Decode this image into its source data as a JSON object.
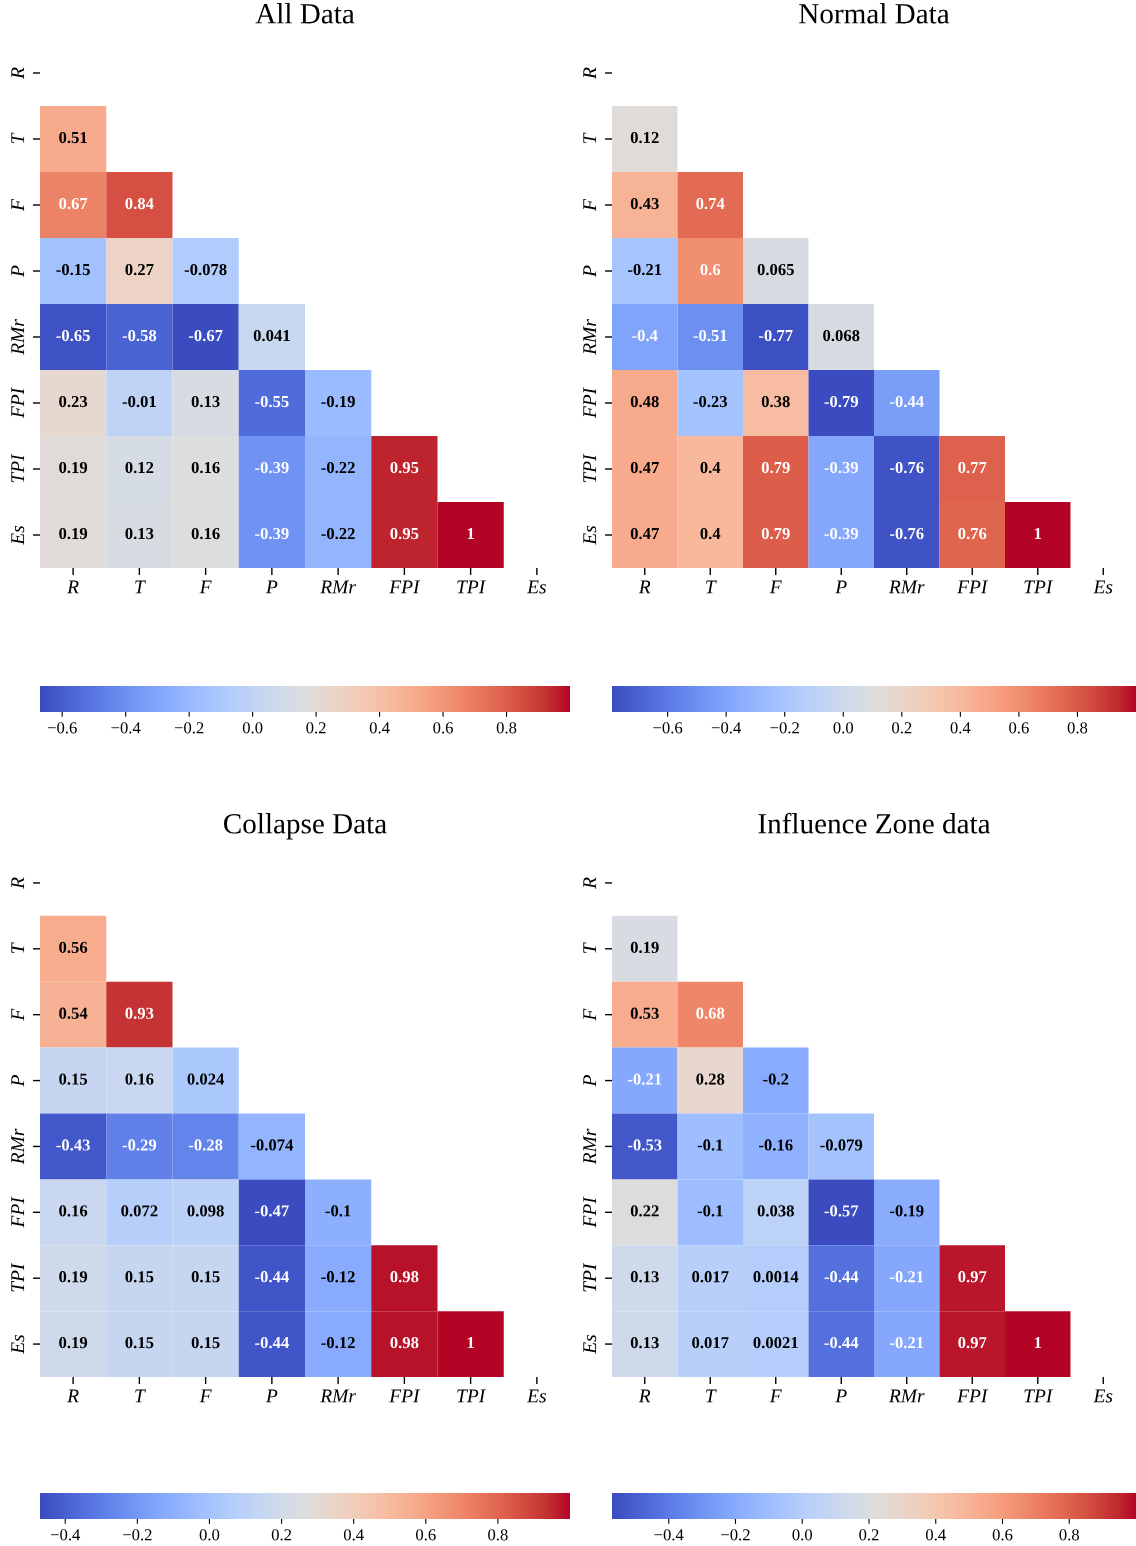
{
  "chart_data": [
    {
      "type": "heatmap",
      "title": "All Data",
      "categories": [
        "R",
        "T",
        "F",
        "P",
        "RMr",
        "FPI",
        "TPI",
        "Es"
      ],
      "y_categories": [
        "R",
        "T",
        "F",
        "P",
        "RMr",
        "FPI",
        "TPI",
        "Es"
      ],
      "cells": [
        [
          null,
          null,
          null,
          null,
          null,
          null,
          null,
          null
        ],
        [
          0.51,
          null,
          null,
          null,
          null,
          null,
          null,
          null
        ],
        [
          0.67,
          0.84,
          null,
          null,
          null,
          null,
          null,
          null
        ],
        [
          -0.15,
          0.27,
          -0.078,
          null,
          null,
          null,
          null,
          null
        ],
        [
          -0.65,
          -0.58,
          -0.67,
          0.041,
          null,
          null,
          null,
          null
        ],
        [
          0.23,
          -0.01,
          0.13,
          -0.55,
          -0.19,
          null,
          null,
          null
        ],
        [
          0.19,
          0.12,
          0.16,
          -0.39,
          -0.22,
          0.95,
          null,
          null
        ],
        [
          0.19,
          0.13,
          0.16,
          -0.39,
          -0.22,
          0.95,
          1,
          null
        ]
      ],
      "clim": [
        -0.67,
        1
      ],
      "cticks": [
        {
          "value": -0.6,
          "label": "−0.6"
        },
        {
          "value": -0.4,
          "label": "−0.4"
        },
        {
          "value": -0.2,
          "label": "−0.2"
        },
        {
          "value": 0,
          "label": "0.0"
        },
        {
          "value": 0.2,
          "label": "0.2"
        },
        {
          "value": 0.4,
          "label": "0.4"
        },
        {
          "value": 0.6,
          "label": "0.6"
        },
        {
          "value": 0.8,
          "label": "0.8"
        }
      ],
      "data_labels": true
    },
    {
      "type": "heatmap",
      "title": "Normal Data",
      "categories": [
        "R",
        "T",
        "F",
        "P",
        "RMr",
        "FPI",
        "TPI",
        "Es"
      ],
      "y_categories": [
        "R",
        "T",
        "F",
        "P",
        "RMr",
        "FPI",
        "TPI",
        "Es"
      ],
      "cells": [
        [
          null,
          null,
          null,
          null,
          null,
          null,
          null,
          null
        ],
        [
          0.12,
          null,
          null,
          null,
          null,
          null,
          null,
          null
        ],
        [
          0.43,
          0.74,
          null,
          null,
          null,
          null,
          null,
          null
        ],
        [
          -0.21,
          0.6,
          0.065,
          null,
          null,
          null,
          null,
          null
        ],
        [
          -0.4,
          -0.51,
          -0.77,
          0.068,
          null,
          null,
          null,
          null
        ],
        [
          0.48,
          -0.23,
          0.38,
          -0.79,
          -0.44,
          null,
          null,
          null
        ],
        [
          0.47,
          0.4,
          0.79,
          -0.39,
          -0.76,
          0.77,
          null,
          null
        ],
        [
          0.47,
          0.4,
          0.79,
          -0.39,
          -0.76,
          0.76,
          1,
          null
        ]
      ],
      "clim": [
        -0.79,
        1
      ],
      "cticks": [
        {
          "value": -0.6,
          "label": "−0.6"
        },
        {
          "value": -0.4,
          "label": "−0.4"
        },
        {
          "value": -0.2,
          "label": "−0.2"
        },
        {
          "value": 0,
          "label": "0.0"
        },
        {
          "value": 0.2,
          "label": "0.2"
        },
        {
          "value": 0.4,
          "label": "0.4"
        },
        {
          "value": 0.6,
          "label": "0.6"
        },
        {
          "value": 0.8,
          "label": "0.8"
        }
      ],
      "data_labels": true
    },
    {
      "type": "heatmap",
      "title": "Collapse Data",
      "categories": [
        "R",
        "T",
        "F",
        "P",
        "RMr",
        "FPI",
        "TPI",
        "Es"
      ],
      "y_categories": [
        "R",
        "T",
        "F",
        "P",
        "RMr",
        "FPI",
        "TPI",
        "Es"
      ],
      "cells": [
        [
          null,
          null,
          null,
          null,
          null,
          null,
          null,
          null
        ],
        [
          0.56,
          null,
          null,
          null,
          null,
          null,
          null,
          null
        ],
        [
          0.54,
          0.93,
          null,
          null,
          null,
          null,
          null,
          null
        ],
        [
          0.15,
          0.16,
          0.024,
          null,
          null,
          null,
          null,
          null
        ],
        [
          -0.43,
          -0.29,
          -0.28,
          -0.074,
          null,
          null,
          null,
          null
        ],
        [
          0.16,
          0.072,
          0.098,
          -0.47,
          -0.1,
          null,
          null,
          null
        ],
        [
          0.19,
          0.15,
          0.15,
          -0.44,
          -0.12,
          0.98,
          null,
          null
        ],
        [
          0.19,
          0.15,
          0.15,
          -0.44,
          -0.12,
          0.98,
          1,
          null
        ]
      ],
      "clim": [
        -0.47,
        1
      ],
      "cticks": [
        {
          "value": -0.4,
          "label": "−0.4"
        },
        {
          "value": -0.2,
          "label": "−0.2"
        },
        {
          "value": 0,
          "label": "0.0"
        },
        {
          "value": 0.2,
          "label": "0.2"
        },
        {
          "value": 0.4,
          "label": "0.4"
        },
        {
          "value": 0.6,
          "label": "0.6"
        },
        {
          "value": 0.8,
          "label": "0.8"
        }
      ],
      "data_labels": true
    },
    {
      "type": "heatmap",
      "title": "Influence Zone data",
      "categories": [
        "R",
        "T",
        "F",
        "P",
        "RMr",
        "FPI",
        "TPI",
        "Es"
      ],
      "y_categories": [
        "R",
        "T",
        "F",
        "P",
        "RMr",
        "FPI",
        "TPI",
        "Es"
      ],
      "cells": [
        [
          null,
          null,
          null,
          null,
          null,
          null,
          null,
          null
        ],
        [
          0.19,
          null,
          null,
          null,
          null,
          null,
          null,
          null
        ],
        [
          0.53,
          0.68,
          null,
          null,
          null,
          null,
          null,
          null
        ],
        [
          -0.21,
          0.28,
          -0.2,
          null,
          null,
          null,
          null,
          null
        ],
        [
          -0.53,
          -0.1,
          -0.16,
          -0.079,
          null,
          null,
          null,
          null
        ],
        [
          0.22,
          -0.1,
          0.038,
          -0.57,
          -0.19,
          null,
          null,
          null
        ],
        [
          0.13,
          0.017,
          0.0014,
          -0.44,
          -0.21,
          0.97,
          null,
          null
        ],
        [
          0.13,
          0.017,
          0.0021,
          -0.44,
          -0.21,
          0.97,
          1,
          null
        ]
      ],
      "clim": [
        -0.57,
        1
      ],
      "cticks": [
        {
          "value": -0.4,
          "label": "−0.4"
        },
        {
          "value": -0.2,
          "label": "−0.2"
        },
        {
          "value": 0,
          "label": "0.0"
        },
        {
          "value": 0.2,
          "label": "0.2"
        },
        {
          "value": 0.4,
          "label": "0.4"
        },
        {
          "value": 0.6,
          "label": "0.6"
        },
        {
          "value": 0.8,
          "label": "0.8"
        }
      ],
      "data_labels": true
    }
  ]
}
